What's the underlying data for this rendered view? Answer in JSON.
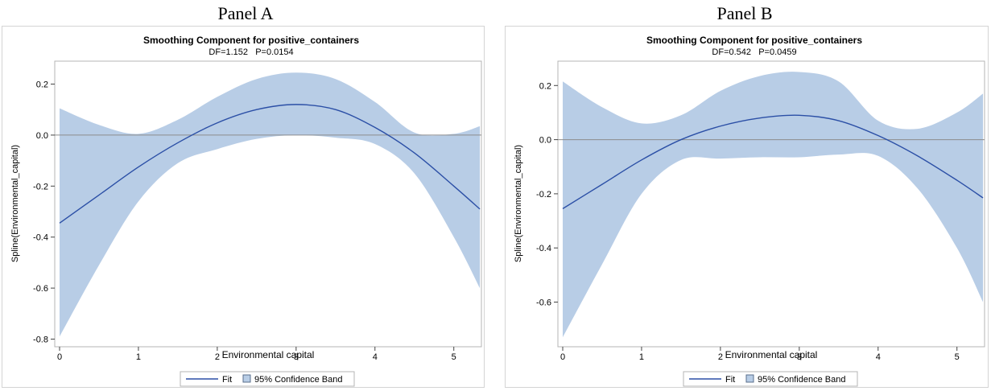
{
  "panels": [
    {
      "label": "Panel A"
    },
    {
      "label": "Panel B"
    }
  ],
  "colors": {
    "fit_line": "#2b4fa6",
    "band_fill": "#b8cde6",
    "reference_line": "#8c8c8c",
    "frame": "#d4d4d4"
  },
  "chart_data": [
    {
      "type": "line",
      "title": "Smoothing Component for positive_containers",
      "subtitle": "DF=1.152   P=0.0154",
      "xlabel": "Environmental capital",
      "ylabel": "Spline(Environmental_capital)",
      "xlim": [
        0,
        5.35
      ],
      "ylim": [
        -0.83,
        0.29
      ],
      "xticks": [
        0,
        1,
        2,
        3,
        4,
        5
      ],
      "yticks": [
        -0.8,
        -0.6,
        -0.4,
        -0.2,
        0.0,
        0.2
      ],
      "ytick_labels": [
        "-0.8",
        "-0.6",
        "-0.4",
        "-0.2",
        "0.0",
        "0.2"
      ],
      "reference_y": 0.0,
      "grid": false,
      "legend_position": "bottom-center",
      "legend": [
        {
          "name": "Fit",
          "kind": "line"
        },
        {
          "name": "95% Confidence Band",
          "kind": "band"
        }
      ],
      "x": [
        0.0,
        0.5,
        1.0,
        1.5,
        2.0,
        2.5,
        3.0,
        3.5,
        4.0,
        4.5,
        5.0,
        5.33
      ],
      "series": [
        {
          "name": "Fit",
          "values": [
            -0.345,
            -0.235,
            -0.125,
            -0.03,
            0.048,
            0.1,
            0.12,
            0.1,
            0.03,
            -0.07,
            -0.2,
            -0.29
          ]
        },
        {
          "name": "95% Confidence Band upper",
          "values": [
            0.105,
            0.04,
            0.005,
            0.06,
            0.15,
            0.22,
            0.245,
            0.22,
            0.13,
            0.01,
            0.005,
            0.035
          ]
        },
        {
          "name": "95% Confidence Band lower",
          "values": [
            -0.79,
            -0.51,
            -0.26,
            -0.11,
            -0.055,
            -0.015,
            0.0,
            -0.01,
            -0.035,
            -0.15,
            -0.4,
            -0.6
          ]
        }
      ]
    },
    {
      "type": "line",
      "title": "Smoothing Component for positive_containers",
      "subtitle": "DF=0.542   P=0.0459",
      "xlabel": "Environmental capital",
      "ylabel": "Spline(Environmental_capital)",
      "xlim": [
        0,
        5.35
      ],
      "ylim": [
        -0.765,
        0.29
      ],
      "xticks": [
        0,
        1,
        2,
        3,
        4,
        5
      ],
      "yticks": [
        -0.6,
        -0.4,
        -0.2,
        0.0,
        0.2
      ],
      "ytick_labels": [
        "-0.6",
        "-0.4",
        "-0.2",
        "0.0",
        "0.2"
      ],
      "reference_y": 0.0,
      "grid": false,
      "legend_position": "bottom-center",
      "legend": [
        {
          "name": "Fit",
          "kind": "line"
        },
        {
          "name": "95% Confidence Band",
          "kind": "band"
        }
      ],
      "x": [
        0.0,
        0.5,
        1.0,
        1.5,
        2.0,
        2.5,
        3.0,
        3.5,
        4.0,
        4.5,
        5.0,
        5.33
      ],
      "series": [
        {
          "name": "Fit",
          "values": [
            -0.255,
            -0.165,
            -0.075,
            0.0,
            0.05,
            0.08,
            0.09,
            0.07,
            0.015,
            -0.06,
            -0.15,
            -0.215
          ]
        },
        {
          "name": "95% Confidence Band upper",
          "values": [
            0.215,
            0.12,
            0.06,
            0.09,
            0.18,
            0.235,
            0.25,
            0.215,
            0.07,
            0.04,
            0.1,
            0.17
          ]
        },
        {
          "name": "95% Confidence Band lower",
          "values": [
            -0.73,
            -0.46,
            -0.2,
            -0.075,
            -0.07,
            -0.065,
            -0.065,
            -0.055,
            -0.06,
            -0.18,
            -0.4,
            -0.6
          ]
        }
      ]
    }
  ]
}
